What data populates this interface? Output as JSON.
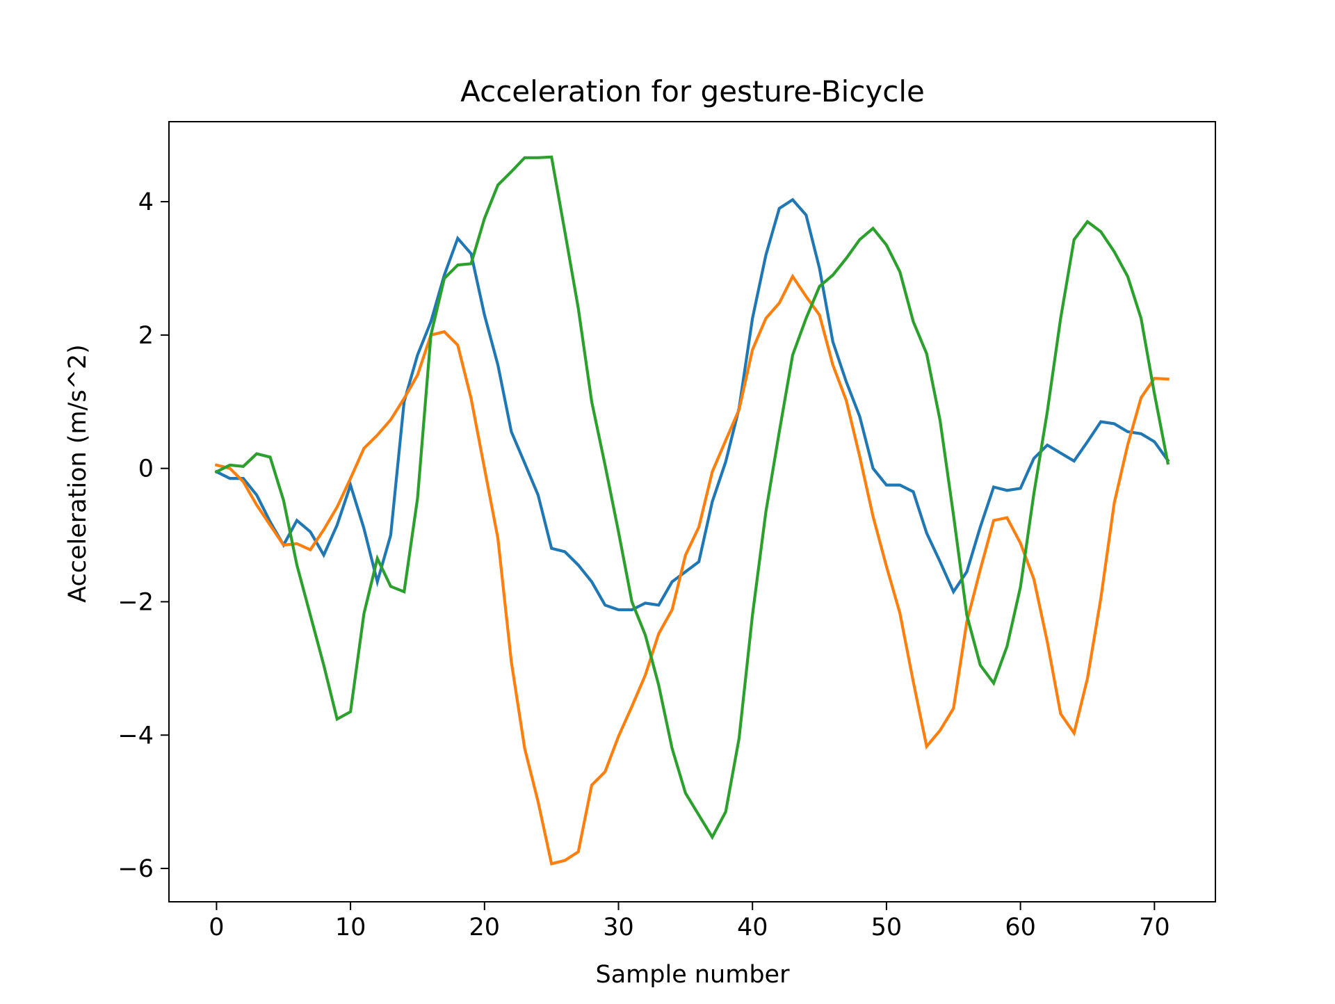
{
  "chart_data": {
    "type": "line",
    "title": "Acceleration for gesture-Bicycle",
    "xlabel": "Sample number",
    "ylabel": "Acceleration (m/s^2)",
    "xlim": [
      -3.55,
      74.55
    ],
    "ylim": [
      -6.5,
      5.2
    ],
    "xticks": [
      0,
      10,
      20,
      30,
      40,
      50,
      60,
      70
    ],
    "yticks": [
      -6,
      -4,
      -2,
      0,
      2,
      4
    ],
    "xtick_labels": [
      "0",
      "10",
      "20",
      "30",
      "40",
      "50",
      "60",
      "70"
    ],
    "ytick_labels": [
      "−6",
      "−4",
      "−2",
      "0",
      "2",
      "4"
    ],
    "grid": false,
    "legend": "none",
    "x": [
      0,
      1,
      2,
      3,
      4,
      5,
      6,
      7,
      8,
      9,
      10,
      11,
      12,
      13,
      14,
      15,
      16,
      17,
      18,
      19,
      20,
      21,
      22,
      23,
      24,
      25,
      26,
      27,
      28,
      29,
      30,
      31,
      32,
      33,
      34,
      35,
      36,
      37,
      38,
      39,
      40,
      41,
      42,
      43,
      44,
      45,
      46,
      47,
      48,
      49,
      50,
      51,
      52,
      53,
      54,
      55,
      56,
      57,
      58,
      59,
      60,
      61,
      62,
      63,
      64,
      65,
      66,
      67,
      68,
      69,
      70,
      71
    ],
    "series": [
      {
        "color": "#1f77b4",
        "values": [
          -0.05,
          -0.15,
          -0.15,
          -0.4,
          -0.8,
          -1.15,
          -0.78,
          -0.95,
          -1.3,
          -0.85,
          -0.25,
          -0.9,
          -1.7,
          -1.0,
          1.0,
          1.7,
          2.2,
          2.9,
          3.45,
          3.22,
          2.3,
          1.55,
          0.55,
          0.08,
          -0.4,
          -1.2,
          -1.25,
          -1.45,
          -1.7,
          -2.05,
          -2.12,
          -2.12,
          -2.02,
          -2.05,
          -1.7,
          -1.55,
          -1.4,
          -0.5,
          0.1,
          0.9,
          2.25,
          3.2,
          3.9,
          4.03,
          3.8,
          3.0,
          1.9,
          1.3,
          0.78,
          0.0,
          -0.25,
          -0.25,
          -0.35,
          -0.97,
          -1.4,
          -1.85,
          -1.55,
          -0.88,
          -0.28,
          -0.33,
          -0.3,
          0.15,
          0.35,
          0.23,
          0.11,
          0.4,
          0.7,
          0.67,
          0.55,
          0.52,
          0.4,
          0.12
        ]
      },
      {
        "color": "#ff7f0e",
        "values": [
          0.05,
          0.0,
          -0.2,
          -0.55,
          -0.85,
          -1.15,
          -1.13,
          -1.22,
          -0.92,
          -0.58,
          -0.15,
          0.3,
          0.5,
          0.73,
          1.05,
          1.4,
          2.0,
          2.05,
          1.85,
          1.05,
          0.0,
          -1.05,
          -2.9,
          -4.2,
          -5.0,
          -5.93,
          -5.88,
          -5.75,
          -4.75,
          -4.55,
          -4.02,
          -3.57,
          -3.1,
          -2.48,
          -2.12,
          -1.3,
          -0.88,
          -0.05,
          0.42,
          0.88,
          1.78,
          2.25,
          2.48,
          2.88,
          2.58,
          2.3,
          1.55,
          1.02,
          0.18,
          -0.72,
          -1.47,
          -2.17,
          -3.2,
          -4.17,
          -3.93,
          -3.6,
          -2.3,
          -1.52,
          -0.78,
          -0.74,
          -1.12,
          -1.66,
          -2.6,
          -3.68,
          -3.97,
          -3.15,
          -1.95,
          -0.52,
          0.35,
          1.06,
          1.35,
          1.34
        ]
      },
      {
        "color": "#2ca02c",
        "values": [
          -0.05,
          0.05,
          0.03,
          0.22,
          0.17,
          -0.48,
          -1.45,
          -2.2,
          -2.95,
          -3.76,
          -3.65,
          -2.18,
          -1.35,
          -1.77,
          -1.85,
          -0.45,
          2.0,
          2.85,
          3.05,
          3.07,
          3.75,
          4.25,
          4.45,
          4.66,
          4.66,
          4.67,
          3.55,
          2.4,
          1.0,
          0.05,
          -0.95,
          -2.0,
          -2.5,
          -3.25,
          -4.2,
          -4.87,
          -5.2,
          -5.53,
          -5.15,
          -4.05,
          -2.2,
          -0.65,
          0.55,
          1.7,
          2.25,
          2.73,
          2.9,
          3.15,
          3.43,
          3.6,
          3.35,
          2.95,
          2.2,
          1.72,
          0.72,
          -0.7,
          -2.2,
          -2.95,
          -3.22,
          -2.67,
          -1.78,
          -0.38,
          0.85,
          2.25,
          3.43,
          3.7,
          3.55,
          3.25,
          2.88,
          2.25,
          1.12,
          0.08
        ]
      }
    ]
  }
}
